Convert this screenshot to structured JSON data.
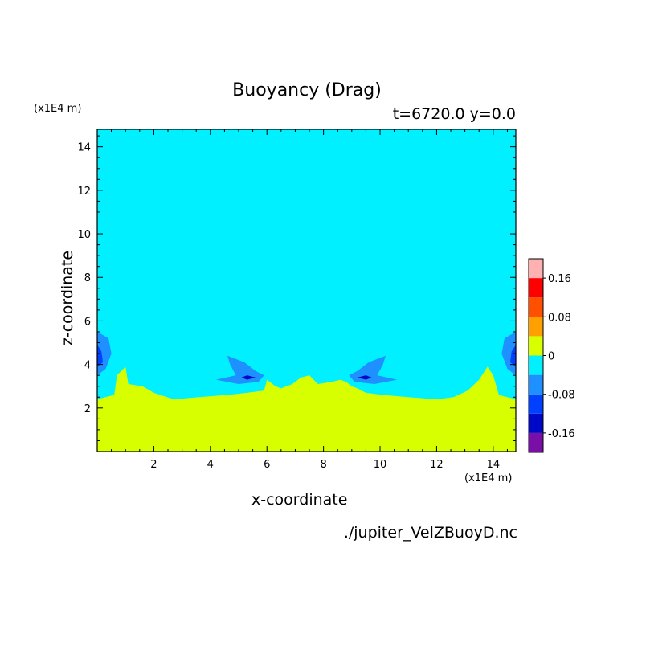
{
  "chart_data": {
    "type": "heatmap",
    "title": "Buoyancy (Drag)",
    "subtitle": "t=6720.0 y=0.0",
    "xlabel": "x-coordinate",
    "ylabel": "z-coordinate",
    "x_unit": "(x1E4 m)",
    "y_unit": "(x1E4 m)",
    "source": "./jupiter_VelZBuoyD.nc",
    "xlim": [
      0,
      14.8
    ],
    "ylim": [
      0,
      14.8
    ],
    "x_ticks": [
      2,
      4,
      6,
      8,
      10,
      12,
      14
    ],
    "y_ticks": [
      2,
      4,
      6,
      8,
      10,
      12,
      14
    ],
    "colorbar": {
      "levels": [
        -0.2,
        -0.16,
        -0.12,
        -0.08,
        -0.04,
        0,
        0.04,
        0.08,
        0.12,
        0.16,
        0.2
      ],
      "colors": [
        "#7a0fa8",
        "#0008c8",
        "#0040ff",
        "#1e90ff",
        "#00f0ff",
        "#d8ff00",
        "#ffa000",
        "#ff5000",
        "#ff0000",
        "#ffb0b0"
      ],
      "tick_labels": [
        "0.16",
        "0.08",
        "0",
        "-0.08",
        "-0.16"
      ],
      "tick_values": [
        0.16,
        0.08,
        0,
        -0.08,
        -0.16
      ]
    },
    "regions": [
      {
        "name": "background",
        "value_range": [
          -0.04,
          0
        ],
        "color": "#00f0ff"
      },
      {
        "name": "lower-layer",
        "value_range": [
          0,
          0.04
        ],
        "color": "#d8ff00",
        "boundary": [
          [
            0,
            2.4
          ],
          [
            0.6,
            2.6
          ],
          [
            0.7,
            3.5
          ],
          [
            1.0,
            3.9
          ],
          [
            1.1,
            3.1
          ],
          [
            1.6,
            3.0
          ],
          [
            2.0,
            2.7
          ],
          [
            2.7,
            2.4
          ],
          [
            3.6,
            2.5
          ],
          [
            4.6,
            2.6
          ],
          [
            5.3,
            2.7
          ],
          [
            5.9,
            2.8
          ],
          [
            6.0,
            3.3
          ],
          [
            6.3,
            3.0
          ],
          [
            6.5,
            2.9
          ],
          [
            6.9,
            3.1
          ],
          [
            7.2,
            3.4
          ],
          [
            7.5,
            3.5
          ],
          [
            7.8,
            3.1
          ],
          [
            8.3,
            3.2
          ],
          [
            8.6,
            3.3
          ],
          [
            8.8,
            3.2
          ],
          [
            9.0,
            3.0
          ],
          [
            9.2,
            2.9
          ],
          [
            9.5,
            2.7
          ],
          [
            10.1,
            2.6
          ],
          [
            11.0,
            2.5
          ],
          [
            12.0,
            2.4
          ],
          [
            12.6,
            2.5
          ],
          [
            13.1,
            2.8
          ],
          [
            13.5,
            3.3
          ],
          [
            13.8,
            3.9
          ],
          [
            14.0,
            3.5
          ],
          [
            14.2,
            2.6
          ],
          [
            14.8,
            2.4
          ]
        ]
      },
      {
        "name": "neg-left-edge",
        "value_range": [
          -0.08,
          -0.04
        ],
        "color": "#1e90ff",
        "polygon": [
          [
            0,
            5.5
          ],
          [
            0.4,
            5.2
          ],
          [
            0.5,
            4.5
          ],
          [
            0.3,
            3.8
          ],
          [
            0,
            3.5
          ]
        ]
      },
      {
        "name": "neg-left-edge-core",
        "value_range": [
          -0.12,
          -0.08
        ],
        "color": "#0040ff",
        "polygon": [
          [
            0,
            4.9
          ],
          [
            0.15,
            4.6
          ],
          [
            0.2,
            4.1
          ],
          [
            0,
            3.9
          ]
        ]
      },
      {
        "name": "neg-right-edge",
        "value_range": [
          -0.08,
          -0.04
        ],
        "color": "#1e90ff",
        "polygon": [
          [
            14.8,
            5.5
          ],
          [
            14.4,
            5.2
          ],
          [
            14.3,
            4.5
          ],
          [
            14.5,
            3.8
          ],
          [
            14.8,
            3.5
          ]
        ]
      },
      {
        "name": "neg-right-edge-core",
        "value_range": [
          -0.12,
          -0.08
        ],
        "color": "#0040ff",
        "polygon": [
          [
            14.8,
            4.9
          ],
          [
            14.65,
            4.6
          ],
          [
            14.6,
            4.1
          ],
          [
            14.8,
            3.9
          ]
        ]
      },
      {
        "name": "neg-blob-left",
        "value_range": [
          -0.08,
          -0.04
        ],
        "color": "#1e90ff",
        "polygon": [
          [
            4.6,
            4.4
          ],
          [
            5.2,
            4.1
          ],
          [
            5.6,
            3.7
          ],
          [
            5.9,
            3.5
          ],
          [
            5.7,
            3.2
          ],
          [
            5.0,
            3.1
          ],
          [
            4.2,
            3.3
          ],
          [
            4.9,
            3.5
          ],
          [
            4.7,
            4.0
          ]
        ]
      },
      {
        "name": "neg-blob-left-core",
        "value_range": [
          -0.16,
          -0.12
        ],
        "color": "#0008c8",
        "polygon": [
          [
            5.3,
            3.5
          ],
          [
            5.6,
            3.4
          ],
          [
            5.3,
            3.3
          ],
          [
            5.1,
            3.4
          ]
        ]
      },
      {
        "name": "neg-blob-right",
        "value_range": [
          -0.08,
          -0.04
        ],
        "color": "#1e90ff",
        "polygon": [
          [
            10.2,
            4.4
          ],
          [
            9.6,
            4.1
          ],
          [
            9.2,
            3.7
          ],
          [
            8.9,
            3.5
          ],
          [
            9.1,
            3.2
          ],
          [
            9.8,
            3.1
          ],
          [
            10.6,
            3.3
          ],
          [
            9.9,
            3.5
          ],
          [
            10.1,
            4.0
          ]
        ]
      },
      {
        "name": "neg-blob-right-core",
        "value_range": [
          -0.16,
          -0.12
        ],
        "color": "#0008c8",
        "polygon": [
          [
            9.5,
            3.5
          ],
          [
            9.2,
            3.4
          ],
          [
            9.5,
            3.3
          ],
          [
            9.7,
            3.4
          ]
        ]
      }
    ]
  }
}
